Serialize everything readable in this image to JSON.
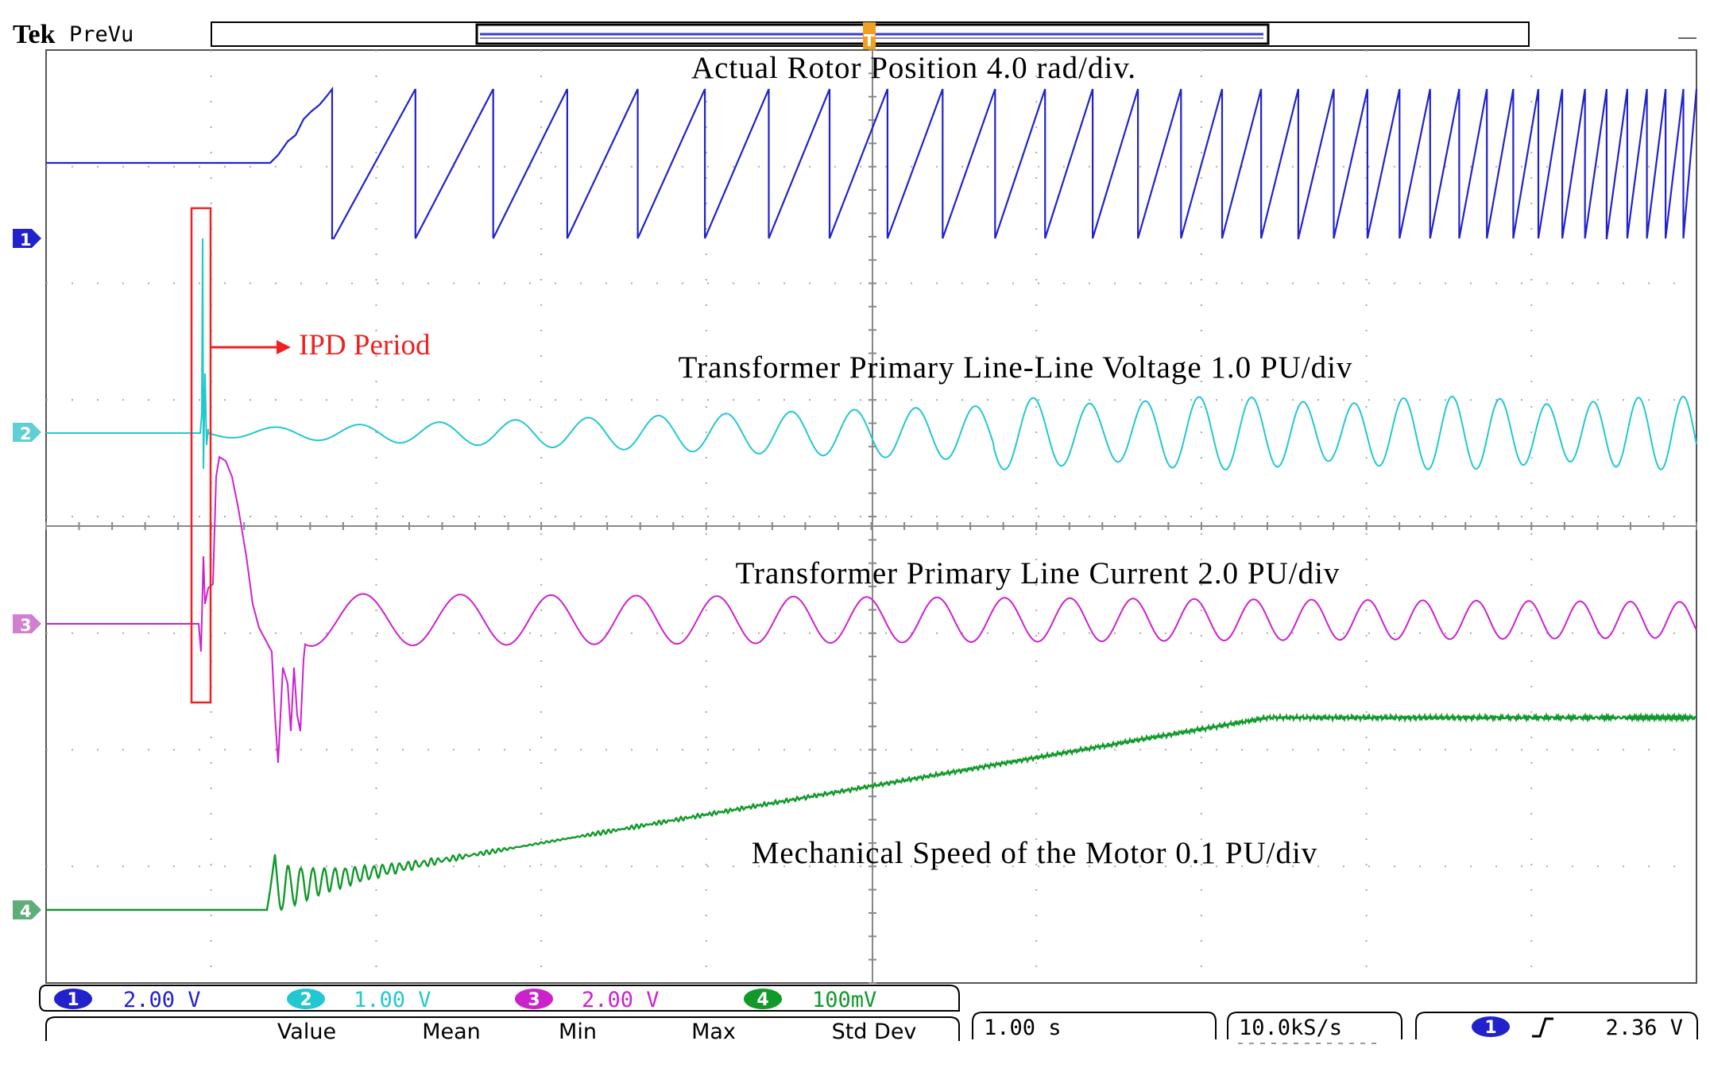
{
  "header": {
    "brand": "Tek",
    "mode": "PreVu",
    "trigger_marker": "T"
  },
  "chart_data": {
    "type": "line",
    "title": "",
    "xlabel": "",
    "ylabel": "",
    "x_divisions": 10,
    "y_divisions": 8,
    "grid": true,
    "series": [
      {
        "name": "Actual Rotor Position 4.0 rad/div.",
        "channel": "1",
        "color": "#2222cc"
      },
      {
        "name": "Transformer Primary Line-Line Voltage 1.0 PU/div",
        "channel": "2",
        "color": "#22c8d0"
      },
      {
        "name": "Transformer Primary Line Current 2.0 PU/div",
        "channel": "3",
        "color": "#cc22cc"
      },
      {
        "name": "Mechanical Speed of the Motor 0.1 PU/div",
        "channel": "4",
        "color": "#11992a"
      }
    ],
    "annotations": [
      {
        "text": "IPD Period",
        "color": "#ee2222"
      }
    ]
  },
  "channel_markers": [
    "1",
    "2",
    "3",
    "4"
  ],
  "channel_scales": [
    {
      "channel": "1",
      "scale": "2.00 V",
      "color": "#2222cc"
    },
    {
      "channel": "2",
      "scale": "1.00 V",
      "color": "#22c8d0"
    },
    {
      "channel": "3",
      "scale": "2.00 V",
      "color": "#cc22cc"
    },
    {
      "channel": "4",
      "scale": "100mV",
      "color": "#11992a"
    }
  ],
  "measurements": {
    "headers": [
      "Value",
      "Mean",
      "Min",
      "Max",
      "Std Dev"
    ]
  },
  "timebase": "1.00 s",
  "sample_rate": "10.0kS/s",
  "trigger": {
    "channel": "1",
    "slope_icon": "rising-edge-icon",
    "level": "2.36 V"
  }
}
